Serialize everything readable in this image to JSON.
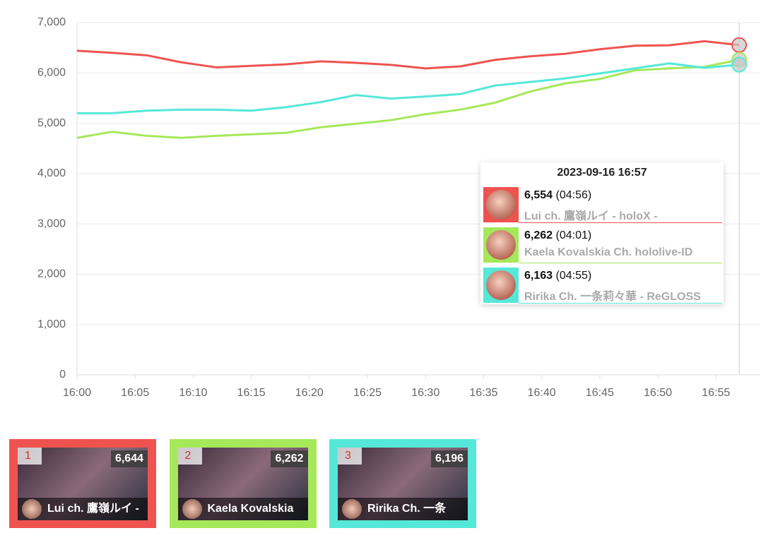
{
  "chart_data": {
    "type": "line",
    "x": [
      "16:00",
      "16:03",
      "16:06",
      "16:09",
      "16:12",
      "16:15",
      "16:18",
      "16:21",
      "16:24",
      "16:27",
      "16:30",
      "16:33",
      "16:36",
      "16:39",
      "16:42",
      "16:45",
      "16:48",
      "16:51",
      "16:54",
      "16:57"
    ],
    "xlim": [
      "16:00",
      "16:59"
    ],
    "xticks": [
      "16:00",
      "16:05",
      "16:10",
      "16:15",
      "16:20",
      "16:25",
      "16:30",
      "16:35",
      "16:40",
      "16:45",
      "16:50",
      "16:55"
    ],
    "ylim": [
      0,
      7000
    ],
    "yticks": [
      0,
      {
        "value": 1000,
        "label": "1,000"
      },
      {
        "value": 2000,
        "label": "2,000"
      },
      {
        "value": 3000,
        "label": "3,000"
      },
      {
        "value": 4000,
        "label": "4,000"
      },
      {
        "value": 5000,
        "label": "5,000"
      },
      {
        "value": 6000,
        "label": "6,000"
      },
      {
        "value": 7000,
        "label": "7,000"
      }
    ],
    "grid": true,
    "series": [
      {
        "name": "Lui ch. 鷹嶺ルイ - holoX -",
        "color": "#ef5350",
        "values": [
          6440,
          6400,
          6350,
          6210,
          6110,
          6140,
          6170,
          6230,
          6200,
          6160,
          6090,
          6130,
          6260,
          6330,
          6380,
          6470,
          6540,
          6550,
          6630,
          6554
        ]
      },
      {
        "name": "Kaela Kovalskia Ch. hololive-ID",
        "color": "#a5e85a",
        "values": [
          4710,
          4830,
          4750,
          4710,
          4750,
          4780,
          4810,
          4920,
          4990,
          5060,
          5180,
          5270,
          5410,
          5630,
          5790,
          5880,
          6050,
          6090,
          6120,
          6262
        ]
      },
      {
        "name": "Ririka Ch. 一条莉々華 ‐ ReGLOSS",
        "color": "#55e8d8",
        "values": [
          5200,
          5200,
          5250,
          5270,
          5270,
          5250,
          5320,
          5420,
          5560,
          5490,
          5530,
          5580,
          5750,
          5820,
          5890,
          5990,
          6090,
          6190,
          6100,
          6163
        ]
      }
    ],
    "tooltip": {
      "title": "2023-09-16 16:57",
      "items": [
        {
          "value": 6554,
          "label": "6,554",
          "duration": "(04:56)"
        },
        {
          "value": 6262,
          "label": "6,262",
          "duration": "(04:01)"
        },
        {
          "value": 6163,
          "label": "6,163",
          "duration": "(04:55)"
        }
      ]
    },
    "cards": [
      {
        "rank": 1,
        "value": 6644,
        "label": "6,644",
        "name": "Lui ch. 鷹嶺ルイ -",
        "color": "#ef5350"
      },
      {
        "rank": 2,
        "value": 6262,
        "label": "6,262",
        "name": "Kaela Kovalskia",
        "color": "#a5e85a"
      },
      {
        "rank": 3,
        "value": 6196,
        "label": "6,196",
        "name": "Ririka Ch. 一条",
        "color": "#55e8d8"
      }
    ]
  }
}
